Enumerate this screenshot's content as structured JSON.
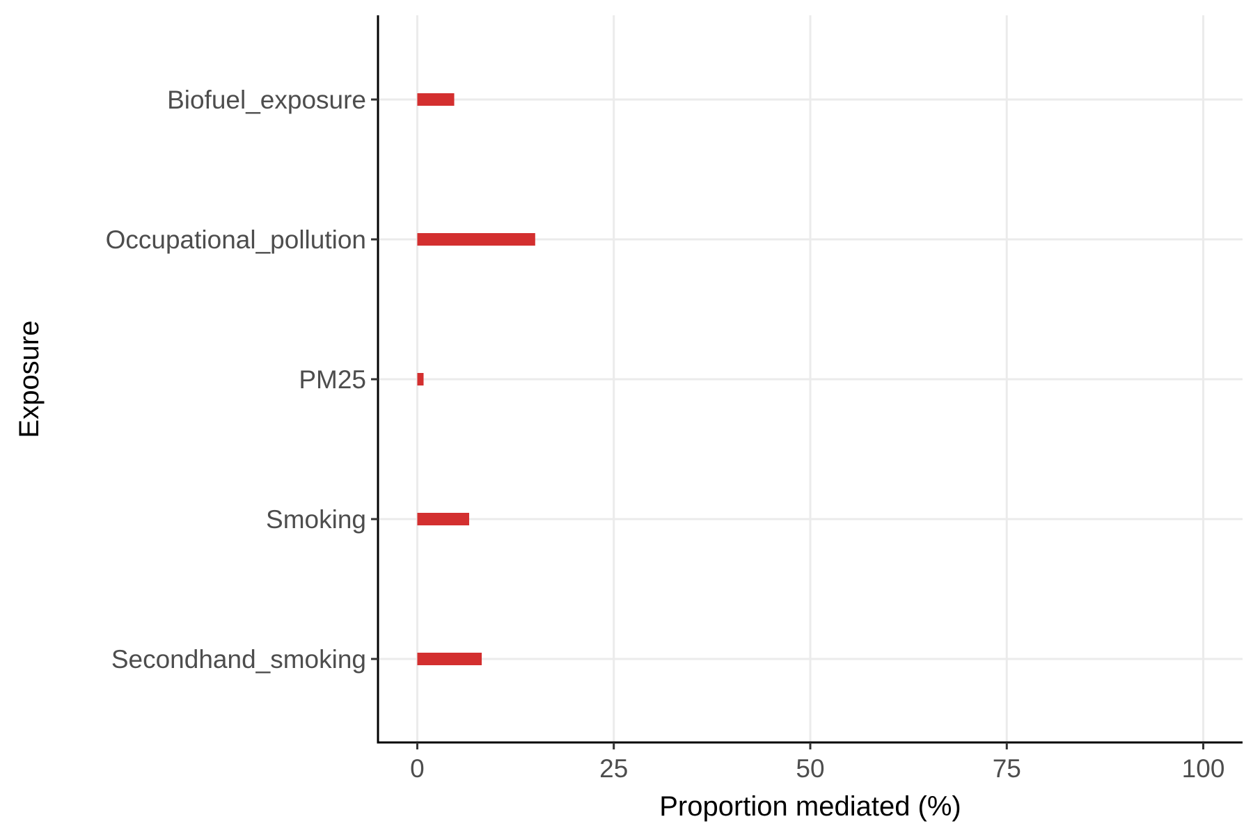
{
  "chart_data": {
    "type": "bar",
    "orientation": "horizontal",
    "title": "",
    "xlabel": "Proportion mediated (%)",
    "ylabel": "Exposure",
    "categories": [
      "Biofuel_exposure",
      "Occupational_pollution",
      "PM25",
      "Smoking",
      "Secondhand_smoking"
    ],
    "values": [
      4.7,
      15.0,
      0.8,
      6.6,
      8.2
    ],
    "xlim": [
      -5,
      105
    ],
    "xticks": [
      0,
      25,
      50,
      75,
      100
    ],
    "grid": true,
    "legend": "none",
    "bar_color": "#d32f2f",
    "grid_color": "#ebebeb"
  }
}
